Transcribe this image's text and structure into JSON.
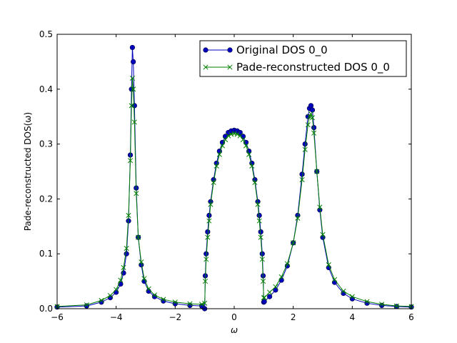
{
  "chart_data": {
    "type": "line",
    "xlabel": "ω",
    "ylabel": "Pade-reconstructed DOS(ω)",
    "xlim": [
      -6,
      6
    ],
    "ylim": [
      0,
      0.5
    ],
    "x_ticks": [
      -6,
      -4,
      -2,
      0,
      2,
      4,
      6
    ],
    "y_ticks": [
      0.0,
      0.1,
      0.2,
      0.3,
      0.4,
      0.5
    ],
    "x_tick_labels": [
      "−6",
      "−4",
      "−2",
      "0",
      "2",
      "4",
      "6"
    ],
    "y_tick_labels": [
      "0.0",
      "0.1",
      "0.2",
      "0.3",
      "0.4",
      "0.5"
    ],
    "grid": false,
    "legend_position": "top-right",
    "series": [
      {
        "name": "Original DOS 0_0",
        "color": "#0000bf",
        "marker": "circle",
        "x": [
          -6.0,
          -5.0,
          -4.5,
          -4.2,
          -4.0,
          -3.85,
          -3.75,
          -3.65,
          -3.58,
          -3.52,
          -3.48,
          -3.45,
          -3.42,
          -3.38,
          -3.32,
          -3.25,
          -3.15,
          -3.05,
          -2.9,
          -2.7,
          -2.4,
          -2.0,
          -1.5,
          -1.1,
          -1.0,
          -0.98,
          -0.95,
          -0.9,
          -0.85,
          -0.8,
          -0.7,
          -0.6,
          -0.5,
          -0.4,
          -0.3,
          -0.2,
          -0.1,
          0.0,
          0.1,
          0.2,
          0.3,
          0.4,
          0.5,
          0.6,
          0.7,
          0.8,
          0.85,
          0.9,
          0.95,
          0.98,
          1.0,
          1.02,
          1.2,
          1.4,
          1.6,
          1.8,
          2.0,
          2.15,
          2.3,
          2.4,
          2.5,
          2.55,
          2.6,
          2.65,
          2.7,
          2.8,
          2.9,
          3.0,
          3.2,
          3.4,
          3.7,
          4.0,
          4.5,
          5.0,
          5.5,
          6.0
        ],
        "y": [
          0.003,
          0.005,
          0.012,
          0.02,
          0.03,
          0.045,
          0.065,
          0.1,
          0.16,
          0.28,
          0.4,
          0.476,
          0.45,
          0.37,
          0.22,
          0.13,
          0.08,
          0.05,
          0.032,
          0.022,
          0.014,
          0.009,
          0.006,
          0.005,
          0.0,
          0.06,
          0.1,
          0.14,
          0.17,
          0.195,
          0.235,
          0.265,
          0.287,
          0.303,
          0.314,
          0.321,
          0.324,
          0.325,
          0.324,
          0.321,
          0.314,
          0.303,
          0.287,
          0.265,
          0.235,
          0.195,
          0.17,
          0.14,
          0.1,
          0.06,
          0.012,
          0.013,
          0.022,
          0.034,
          0.052,
          0.078,
          0.12,
          0.17,
          0.245,
          0.3,
          0.35,
          0.365,
          0.37,
          0.362,
          0.33,
          0.25,
          0.18,
          0.13,
          0.075,
          0.048,
          0.028,
          0.018,
          0.01,
          0.006,
          0.004,
          0.003
        ]
      },
      {
        "name": "Pade-reconstructed DOS 0_0",
        "color": "#007f00",
        "marker": "x",
        "x": [
          -6.0,
          -5.0,
          -4.5,
          -4.2,
          -4.0,
          -3.85,
          -3.75,
          -3.65,
          -3.58,
          -3.52,
          -3.48,
          -3.45,
          -3.42,
          -3.38,
          -3.32,
          -3.25,
          -3.15,
          -3.05,
          -2.9,
          -2.7,
          -2.4,
          -2.0,
          -1.5,
          -1.1,
          -1.0,
          -0.98,
          -0.95,
          -0.9,
          -0.85,
          -0.8,
          -0.7,
          -0.6,
          -0.5,
          -0.4,
          -0.3,
          -0.2,
          -0.1,
          0.0,
          0.1,
          0.2,
          0.3,
          0.4,
          0.5,
          0.6,
          0.7,
          0.8,
          0.85,
          0.9,
          0.95,
          0.98,
          1.0,
          1.02,
          1.2,
          1.4,
          1.6,
          1.8,
          2.0,
          2.15,
          2.3,
          2.4,
          2.5,
          2.55,
          2.6,
          2.65,
          2.7,
          2.8,
          2.9,
          3.0,
          3.2,
          3.4,
          3.7,
          4.0,
          4.5,
          5.0,
          5.5,
          6.0
        ],
        "y": [
          0.004,
          0.007,
          0.015,
          0.024,
          0.035,
          0.052,
          0.075,
          0.11,
          0.17,
          0.27,
          0.37,
          0.42,
          0.4,
          0.34,
          0.21,
          0.13,
          0.085,
          0.055,
          0.036,
          0.025,
          0.017,
          0.012,
          0.009,
          0.008,
          0.01,
          0.05,
          0.09,
          0.13,
          0.16,
          0.19,
          0.23,
          0.26,
          0.281,
          0.297,
          0.308,
          0.315,
          0.318,
          0.319,
          0.318,
          0.315,
          0.308,
          0.297,
          0.281,
          0.26,
          0.23,
          0.19,
          0.16,
          0.13,
          0.09,
          0.05,
          0.02,
          0.02,
          0.03,
          0.04,
          0.058,
          0.082,
          0.12,
          0.165,
          0.235,
          0.29,
          0.335,
          0.35,
          0.355,
          0.348,
          0.32,
          0.25,
          0.185,
          0.135,
          0.08,
          0.053,
          0.032,
          0.022,
          0.013,
          0.008,
          0.005,
          0.004
        ]
      }
    ]
  }
}
